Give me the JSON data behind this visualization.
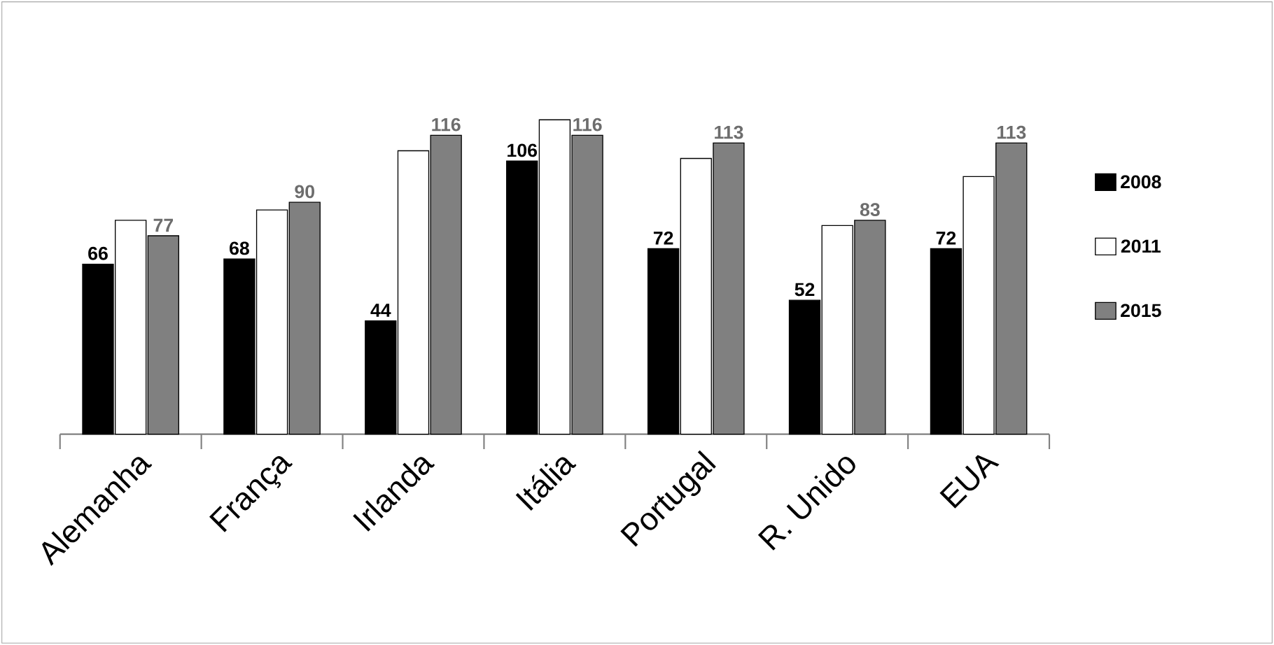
{
  "chart_data": {
    "type": "bar",
    "categories": [
      "Alemanha",
      "França",
      "Irlanda",
      "Itália",
      "Portugal",
      "R. Unido",
      "EUA"
    ],
    "series": [
      {
        "name": "2008",
        "color": "#000000",
        "values": [
          66,
          68,
          44,
          106,
          72,
          52,
          72
        ],
        "value_labels": [
          "66",
          "68",
          "44",
          "106",
          "72",
          "52",
          "72"
        ]
      },
      {
        "name": "2011",
        "color": "#ffffff",
        "values": [
          83,
          87,
          110,
          122,
          107,
          81,
          100
        ],
        "value_labels": [
          null,
          null,
          null,
          null,
          null,
          null,
          null
        ]
      },
      {
        "name": "2015",
        "color": "#808080",
        "values": [
          77,
          90,
          116,
          116,
          113,
          83,
          113
        ],
        "value_labels": [
          "77",
          "90",
          "116",
          "116",
          "113",
          "83",
          "113"
        ]
      }
    ],
    "legend": "right"
  }
}
